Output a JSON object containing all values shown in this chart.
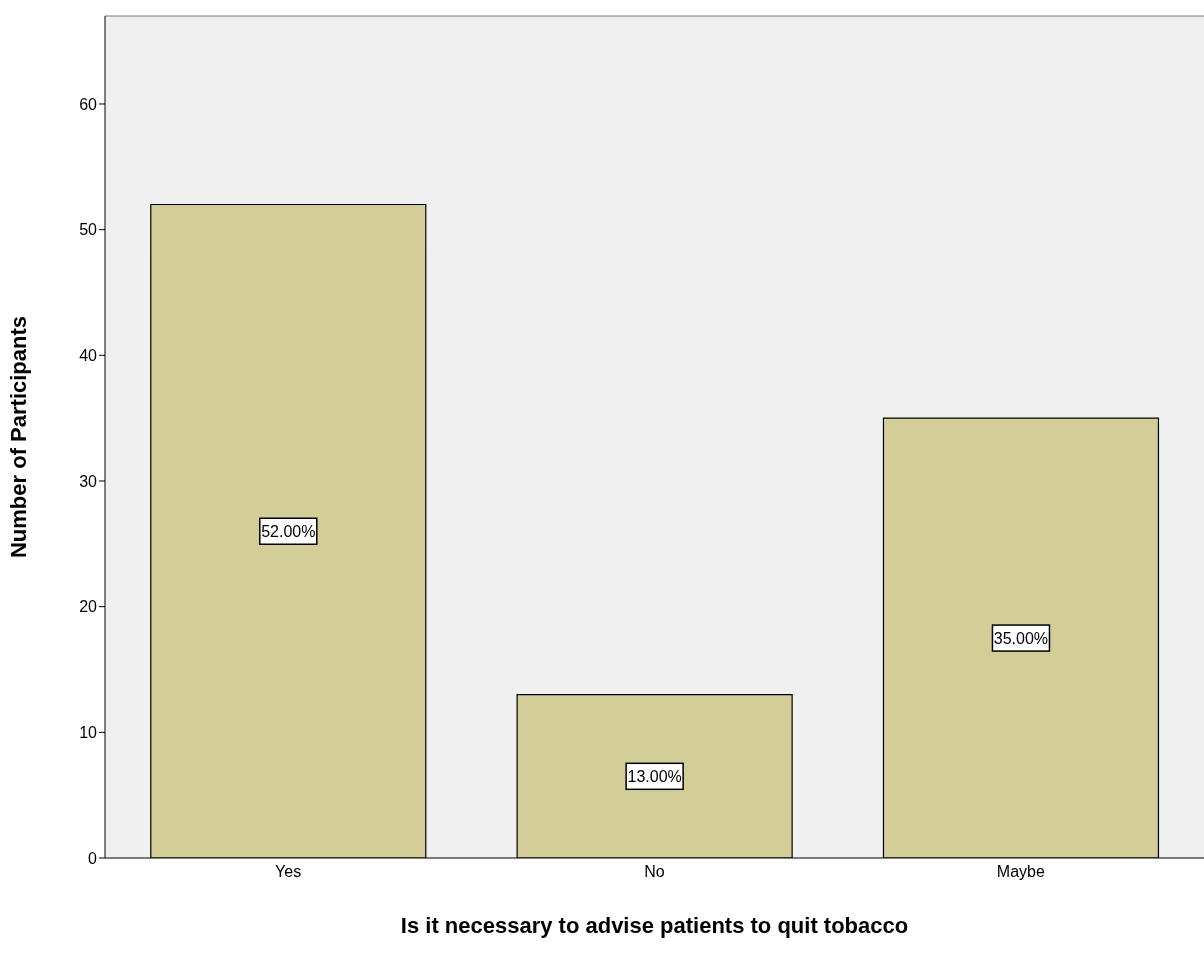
{
  "chart_data": {
    "type": "bar",
    "xlabel": "Is it necessary to advise patients to quit tobacco",
    "ylabel": "Number of Participants",
    "categories": [
      "Yes",
      "No",
      "Maybe"
    ],
    "values": [
      52,
      13,
      35
    ],
    "value_labels": [
      "52.00%",
      "13.00%",
      "35.00%"
    ],
    "color": "#d3cd98",
    "ylim": [
      0,
      67
    ],
    "yticks": [
      0,
      10,
      20,
      30,
      40,
      50,
      60
    ],
    "grid": false
  }
}
